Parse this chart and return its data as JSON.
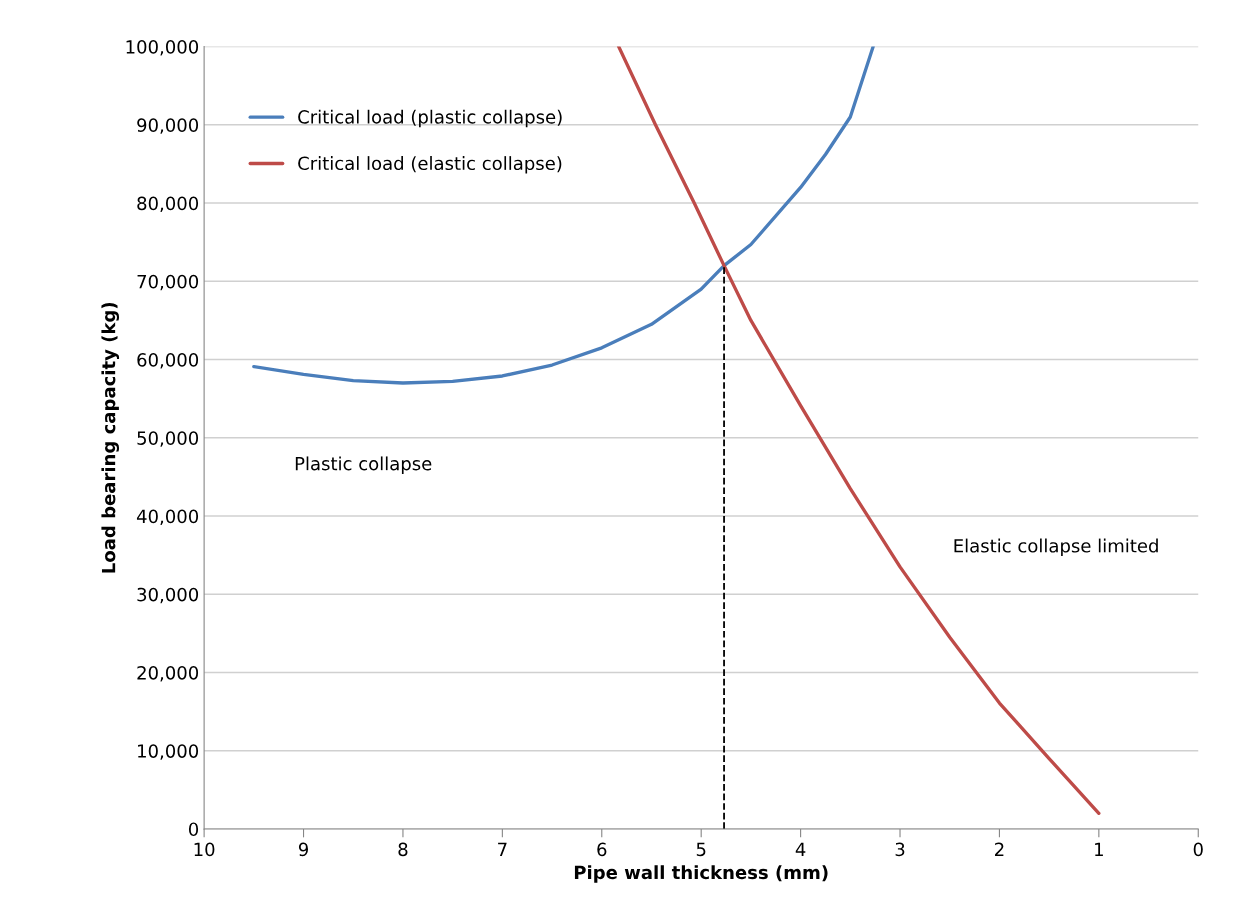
{
  "chart_data": {
    "type": "line",
    "xlabel": "Pipe wall thickness (mm)",
    "ylabel": "Load bearing capacity (kg)",
    "series": [
      {
        "name": "Critical load (plastic collapse)",
        "color": "#4a7ebb",
        "x": [
          9.5,
          9,
          8.5,
          8,
          7.5,
          7,
          6.5,
          6,
          5.5,
          5,
          4.77,
          4.5,
          4,
          3.75,
          3.5,
          3.27
        ],
        "values": [
          59100,
          58100,
          57300,
          57000,
          57200,
          57900,
          59300,
          61500,
          64500,
          69000,
          72000,
          74700,
          82000,
          86200,
          91000,
          100000
        ]
      },
      {
        "name": "Critical load (elastic collapse)",
        "color": "#be4b48",
        "x": [
          5.83,
          5.46,
          5.07,
          4.77,
          4.5,
          4,
          3.5,
          3,
          2.5,
          2,
          1.5,
          1
        ],
        "values": [
          100000,
          90000,
          80000,
          72000,
          65000,
          54100,
          43500,
          33500,
          24500,
          16100,
          9000,
          2000
        ]
      },
      {
        "color": "#000000",
        "line_style": "dashed",
        "x": [
          4.77,
          4.77
        ],
        "values": [
          0,
          72000
        ]
      }
    ],
    "xlim": [
      10,
      0
    ],
    "xticks": [
      10,
      9,
      8,
      7,
      6,
      5,
      4,
      3,
      2,
      1,
      0
    ],
    "ylim": [
      0,
      100000
    ],
    "yticks": [
      {
        "value": 0,
        "label": "0"
      },
      {
        "value": 10000,
        "label": "10,000"
      },
      {
        "value": 20000,
        "label": "20,000"
      },
      {
        "value": 30000,
        "label": "30,000"
      },
      {
        "value": 40000,
        "label": "40,000"
      },
      {
        "value": 50000,
        "label": "50,000"
      },
      {
        "value": 60000,
        "label": "60,000"
      },
      {
        "value": 70000,
        "label": "70,000"
      },
      {
        "value": 80000,
        "label": "80,000"
      },
      {
        "value": 90000,
        "label": "90,000"
      },
      {
        "value": 100000,
        "label": "100,000"
      }
    ],
    "grid": "y",
    "legend": "top left",
    "line_style": "solid",
    "marker": "none",
    "annotations": [
      "Plastic collapse",
      "Elastic collapse limited"
    ]
  }
}
